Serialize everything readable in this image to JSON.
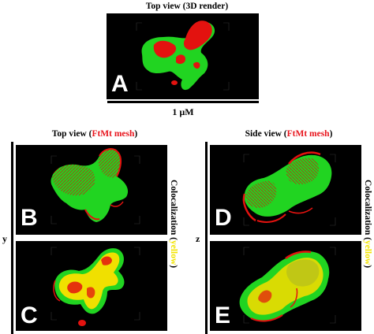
{
  "top": {
    "title": "Top view (3D render)",
    "scale_label": "1 µM",
    "panel_label": "A"
  },
  "left": {
    "title_prefix": "Top view (",
    "title_highlight": "FtMt mesh",
    "title_suffix": ")",
    "axis": "y",
    "side_prefix": "Colocalization (",
    "side_highlight": "yellow",
    "side_suffix": ")",
    "panel_labels": [
      "B",
      "C"
    ]
  },
  "right": {
    "title_prefix": "Side view (",
    "title_highlight": "FtMt mesh",
    "title_suffix": ")",
    "axis": "z",
    "side_prefix": "Colocalization (",
    "side_highlight": "yellow",
    "side_suffix": ")",
    "panel_labels": [
      "D",
      "E"
    ]
  },
  "colors": {
    "green": "#22d622",
    "red": "#e3120f",
    "yellow": "#f2e400",
    "background": "#000000"
  }
}
